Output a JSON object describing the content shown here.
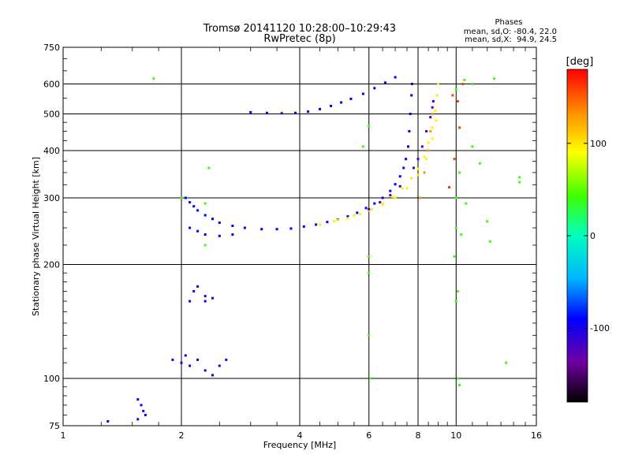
{
  "chart_data": {
    "type": "scatter",
    "title": "Tromsø 20141120 10:28:00–10:29:43",
    "subtitle": "RwPretec (8p)",
    "xlabel": "Frequency [MHz]",
    "ylabel": "Stationary phase Virtual Height [km]",
    "x_scale": "log",
    "y_scale": "log",
    "xlim": [
      1,
      16
    ],
    "ylim": [
      75,
      750
    ],
    "x_ticks": [
      1,
      2,
      4,
      6,
      8,
      10,
      16
    ],
    "x_tick_labels": [
      "1",
      "2",
      "4",
      "6",
      "8",
      "10",
      "16"
    ],
    "y_ticks": [
      75,
      100,
      200,
      300,
      400,
      500,
      600,
      750
    ],
    "y_tick_labels": [
      "75",
      "100",
      "200",
      "300",
      "400",
      "500",
      "600",
      "750"
    ],
    "grid": true,
    "stats": {
      "title": "Phases",
      "line_o": "mean, sd,O: -80.4, 22.0",
      "line_x": "mean, sd,X:  94.9, 24.5"
    },
    "colorbar": {
      "label": "[deg]",
      "min": -180,
      "max": 180,
      "ticks": [
        100,
        0,
        -100
      ],
      "tick_labels": [
        "100",
        "0",
        "-100"
      ]
    },
    "series": [
      {
        "points": [
          [
            2.05,
            300
          ],
          [
            2.1,
            292
          ],
          [
            2.15,
            285
          ],
          [
            2.2,
            278
          ],
          [
            2.3,
            270
          ],
          [
            2.4,
            264
          ],
          [
            2.5,
            258
          ],
          [
            2.7,
            253
          ],
          [
            2.9,
            250
          ],
          [
            3.2,
            248
          ],
          [
            3.5,
            248
          ],
          [
            3.8,
            249
          ],
          [
            4.1,
            252
          ],
          [
            4.4,
            255
          ],
          [
            4.7,
            259
          ],
          [
            5.0,
            263
          ],
          [
            5.3,
            268
          ],
          [
            5.6,
            274
          ],
          [
            5.9,
            282
          ],
          [
            6.2,
            290
          ],
          [
            6.5,
            300
          ],
          [
            6.8,
            313
          ],
          [
            7.0,
            326
          ],
          [
            7.2,
            342
          ],
          [
            7.35,
            360
          ],
          [
            7.45,
            380
          ],
          [
            7.55,
            410
          ],
          [
            7.6,
            450
          ],
          [
            7.65,
            500
          ],
          [
            7.7,
            560
          ],
          [
            7.72,
            600
          ],
          [
            2.1,
            250
          ],
          [
            2.2,
            245
          ],
          [
            2.3,
            240
          ],
          [
            2.5,
            238
          ],
          [
            2.7,
            240
          ],
          [
            3.0,
            505
          ],
          [
            3.3,
            503
          ],
          [
            3.6,
            502
          ],
          [
            3.9,
            503
          ],
          [
            4.2,
            507
          ],
          [
            4.5,
            515
          ],
          [
            4.8,
            525
          ],
          [
            5.1,
            536
          ],
          [
            5.4,
            548
          ],
          [
            5.8,
            565
          ],
          [
            6.2,
            585
          ],
          [
            6.6,
            605
          ],
          [
            7.0,
            625
          ]
        ],
        "phase": -90
      },
      {
        "points": [
          [
            4.5,
            255
          ],
          [
            4.9,
            260
          ],
          [
            5.3,
            265
          ],
          [
            5.7,
            272
          ],
          [
            6.1,
            280
          ],
          [
            6.5,
            290
          ],
          [
            6.9,
            302
          ],
          [
            7.3,
            318
          ],
          [
            7.7,
            338
          ],
          [
            8.0,
            358
          ],
          [
            8.3,
            385
          ],
          [
            8.5,
            420
          ],
          [
            8.7,
            460
          ],
          [
            8.85,
            510
          ],
          [
            8.95,
            560
          ],
          [
            9.0,
            600
          ],
          [
            5.0,
            262
          ],
          [
            5.5,
            270
          ],
          [
            6.0,
            278
          ],
          [
            6.5,
            288
          ],
          [
            7.0,
            300
          ],
          [
            7.5,
            318
          ],
          [
            8.0,
            345
          ],
          [
            8.4,
            380
          ],
          [
            8.7,
            430
          ],
          [
            8.9,
            480
          ]
        ],
        "phase": 95
      },
      {
        "points": [
          [
            7.8,
            360
          ],
          [
            8.0,
            380
          ],
          [
            8.2,
            410
          ],
          [
            8.4,
            450
          ],
          [
            8.6,
            490
          ],
          [
            8.7,
            520
          ],
          [
            8.75,
            540
          ],
          [
            6.0,
            280
          ],
          [
            6.4,
            292
          ],
          [
            6.8,
            305
          ],
          [
            7.2,
            322
          ]
        ],
        "phase": -120
      },
      {
        "points": [
          [
            8.1,
            300
          ],
          [
            8.3,
            350
          ],
          [
            8.5,
            400
          ],
          [
            8.6,
            450
          ],
          [
            8.7,
            500
          ]
        ],
        "phase": 130
      },
      {
        "points": [
          [
            2.15,
            170
          ],
          [
            2.3,
            165
          ],
          [
            2.2,
            175
          ],
          [
            2.3,
            160
          ],
          [
            2.4,
            163
          ],
          [
            2.1,
            160
          ],
          [
            1.9,
            112
          ],
          [
            2.0,
            110
          ],
          [
            2.05,
            115
          ],
          [
            2.1,
            108
          ],
          [
            2.2,
            112
          ],
          [
            2.3,
            105
          ],
          [
            2.5,
            108
          ],
          [
            2.6,
            112
          ],
          [
            2.4,
            102
          ],
          [
            1.55,
            88
          ],
          [
            1.58,
            85
          ],
          [
            1.6,
            82
          ],
          [
            1.62,
            80
          ],
          [
            1.3,
            77
          ],
          [
            1.55,
            78
          ]
        ],
        "phase": -100
      },
      {
        "points": [
          [
            1.7,
            620
          ],
          [
            2.0,
            300
          ],
          [
            2.3,
            290
          ],
          [
            2.3,
            225
          ],
          [
            2.35,
            360
          ],
          [
            5.8,
            410
          ],
          [
            6.0,
            465
          ],
          [
            6.0,
            210
          ],
          [
            6.0,
            190
          ],
          [
            6.0,
            130
          ],
          [
            6.05,
            100
          ],
          [
            10.5,
            615
          ],
          [
            11.0,
            600
          ],
          [
            10.0,
            580
          ],
          [
            10.0,
            300
          ],
          [
            10.2,
            350
          ],
          [
            10.0,
            250
          ],
          [
            10.3,
            240
          ],
          [
            10.6,
            290
          ],
          [
            10.1,
            170
          ],
          [
            10.0,
            160
          ],
          [
            9.9,
            210
          ],
          [
            12.0,
            260
          ],
          [
            12.2,
            230
          ],
          [
            12.5,
            620
          ],
          [
            13.4,
            110
          ],
          [
            14.5,
            330
          ],
          [
            14.5,
            340
          ],
          [
            10.1,
            100
          ],
          [
            10.2,
            96
          ],
          [
            11.5,
            370
          ],
          [
            11.0,
            410
          ]
        ],
        "phase": 40
      },
      {
        "points": [
          [
            9.8,
            560
          ],
          [
            10.1,
            540
          ],
          [
            10.4,
            600
          ],
          [
            9.9,
            380
          ],
          [
            10.2,
            460
          ],
          [
            9.6,
            320
          ]
        ],
        "phase": 160
      }
    ]
  }
}
